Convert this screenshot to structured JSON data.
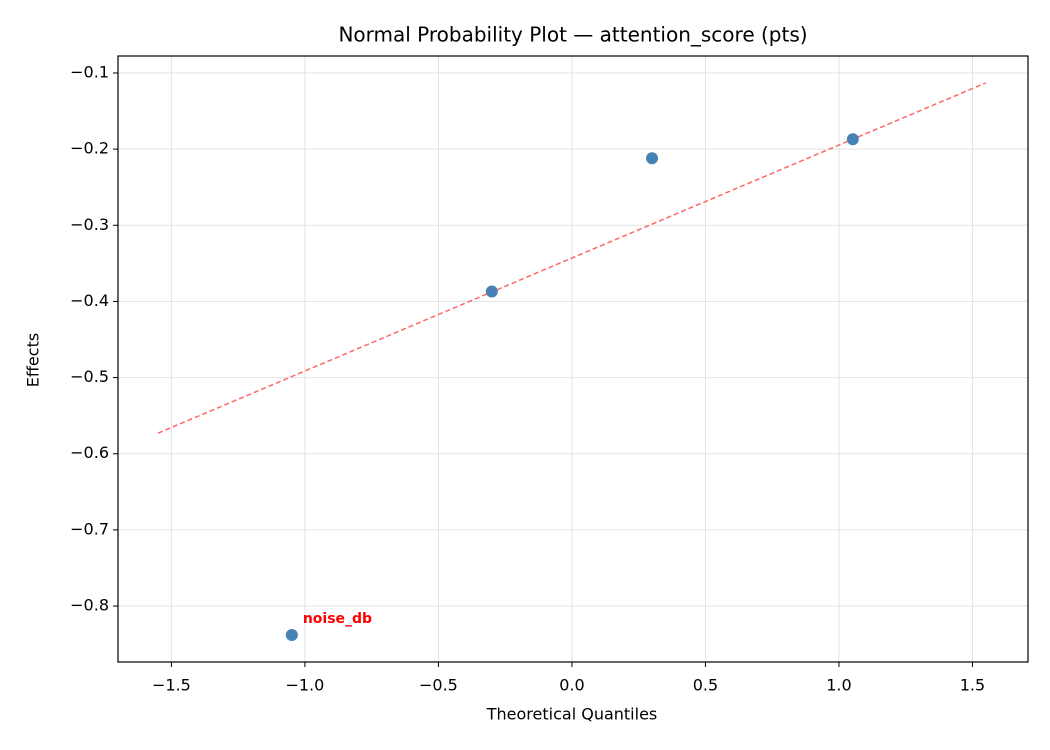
{
  "chart_data": {
    "type": "scatter",
    "title": "Normal Probability Plot — attention_score (pts)",
    "xlabel": "Theoretical Quantiles",
    "ylabel": "Effects",
    "x": [
      -1.049,
      -0.3,
      0.3,
      1.052
    ],
    "values": [
      -0.838,
      -0.387,
      -0.212,
      -0.187
    ],
    "point_labels": [
      "noise_db",
      null,
      null,
      null
    ],
    "point_label_color": "#ff0000",
    "color": "#4682b4",
    "reference_line": {
      "x": [
        -1.55,
        1.55
      ],
      "values": [
        -0.573,
        -0.113
      ],
      "color": "#ff6666",
      "dashed": true
    },
    "xlim": [
      -1.7,
      1.708
    ],
    "ylim": [
      -0.8735,
      -0.0777
    ],
    "xticks": [
      {
        "value": -1.5,
        "label": "−1.5"
      },
      {
        "value": -1.0,
        "label": "−1.0"
      },
      {
        "value": -0.5,
        "label": "−0.5"
      },
      {
        "value": 0,
        "label": "0.0"
      },
      {
        "value": 0.5,
        "label": "0.5"
      },
      {
        "value": 1.0,
        "label": "1.0"
      },
      {
        "value": 1.5,
        "label": "1.5"
      }
    ],
    "yticks": [
      {
        "value": -0.1,
        "label": "−0.1"
      },
      {
        "value": -0.2,
        "label": "−0.2"
      },
      {
        "value": -0.3,
        "label": "−0.3"
      },
      {
        "value": -0.4,
        "label": "−0.4"
      },
      {
        "value": -0.5,
        "label": "−0.5"
      },
      {
        "value": -0.6,
        "label": "−0.6"
      },
      {
        "value": -0.7,
        "label": "−0.7"
      },
      {
        "value": -0.8,
        "label": "−0.8"
      }
    ],
    "grid": true
  }
}
